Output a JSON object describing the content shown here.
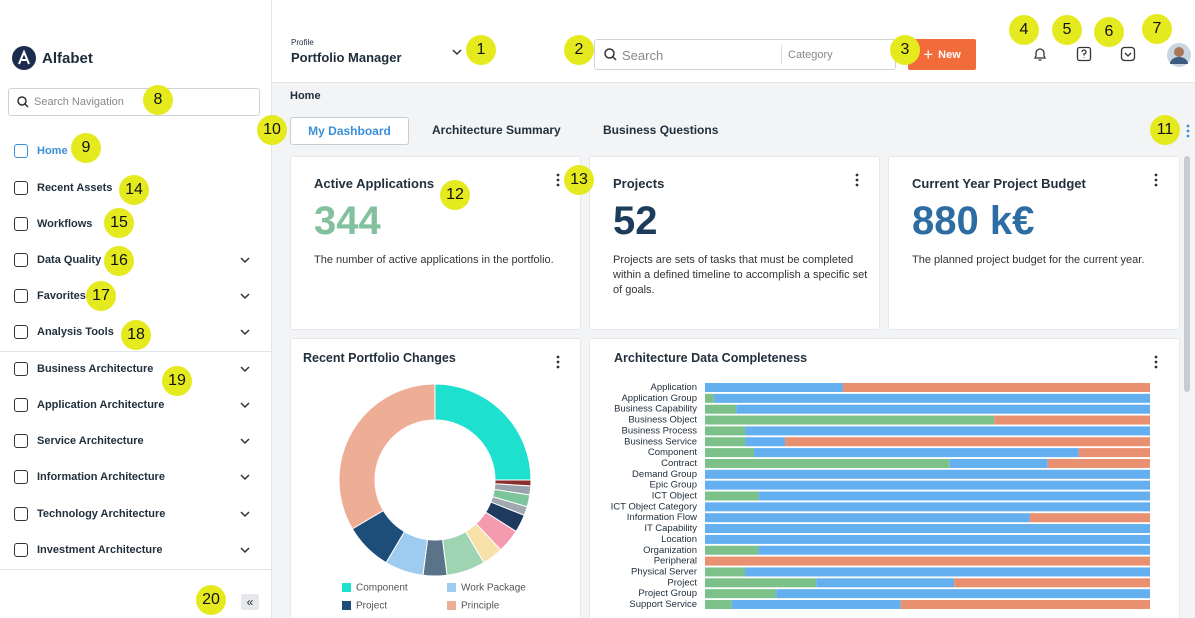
{
  "header": {
    "logo": "Alfabet",
    "profile_label": "Profile",
    "profile": "Portfolio Manager",
    "search_placeholder": "Search",
    "category_placeholder": "Category",
    "new_button": "New"
  },
  "sidebar": {
    "search_placeholder": "Search Navigation",
    "nav": [
      "Home",
      "Recent Assets",
      "Workflows",
      "Data Quality",
      "Favorites",
      "Analysis Tools",
      "Business Architecture",
      "Application Architecture",
      "Service Architecture",
      "Information Architecture",
      "Technology Architecture",
      "Investment Architecture"
    ],
    "collapse": "«"
  },
  "breadcrumb": "Home",
  "tabs": [
    "My Dashboard",
    "Architecture Summary",
    "Business Questions"
  ],
  "cards": [
    {
      "title": "Active Applications",
      "value": 344,
      "description": "The number of active applications in the portfolio."
    },
    {
      "title": "Projects",
      "value": 52,
      "description": "Projects are sets of tasks that must be completed within a defined timeline to accomplish a specific set of goals."
    },
    {
      "title": "Current Year Project Budget",
      "value": "880 k€",
      "description": "The planned project budget for the current year."
    }
  ],
  "callouts": [
    1,
    2,
    3,
    4,
    5,
    6,
    7,
    8,
    9,
    10,
    11,
    12,
    13,
    14,
    15,
    16,
    17,
    18,
    19,
    20
  ],
  "chart_data": [
    {
      "type": "pie",
      "donut": true,
      "title": "Recent Portfolio Changes",
      "categories": [
        "Component",
        null,
        null,
        null,
        null,
        null,
        null,
        null,
        null,
        null,
        "Work Package",
        "Project",
        "Principle"
      ],
      "values": [
        25,
        1,
        1.5,
        2,
        1.5,
        3,
        4,
        3.5,
        6.5,
        4,
        6.5,
        8,
        33.5
      ],
      "colors": [
        "#1de0cf",
        "#8b2e2e",
        "#9aa3ab",
        "#7cc49a",
        "#a0a8b0",
        "#1e3a5f",
        "#f59bb0",
        "#f7e1a8",
        "#9fd4b3",
        "#5a7389",
        "#9ecbf0",
        "#1d4e79",
        "#eeae96"
      ]
    },
    {
      "type": "bar",
      "orientation": "horizontal",
      "stacked": true,
      "title": "Architecture Data Completeness",
      "categories": [
        "Application",
        "Application Group",
        "Business Capability",
        "Business Object",
        "Business Process",
        "Business Service",
        "Component",
        "Contract",
        "Demand Group",
        "Epic Group",
        "ICT Object",
        "ICT Object Category",
        "Information Flow",
        "IT Capability",
        "Location",
        "Organization",
        "Peripheral",
        "Physical Server",
        "Project",
        "Project Group",
        "Support Service"
      ],
      "xlim": [
        0,
        100
      ],
      "series": [
        {
          "color": "#7cc08a",
          "values": [
            0,
            2,
            7,
            65,
            9,
            9,
            11,
            55,
            0,
            0,
            12,
            0,
            0,
            0,
            0,
            12,
            0,
            9,
            25,
            16,
            6
          ]
        },
        {
          "color": "#63aff0",
          "values": [
            31,
            98,
            93,
            0,
            91,
            9,
            73,
            22,
            100,
            100,
            88,
            100,
            73,
            100,
            100,
            88,
            0,
            91,
            31,
            84,
            38
          ]
        },
        {
          "color": "#e8906f",
          "values": [
            69,
            0,
            0,
            35,
            0,
            82,
            16,
            23,
            0,
            0,
            0,
            0,
            27,
            0,
            0,
            0,
            100,
            0,
            44,
            0,
            56
          ]
        }
      ]
    }
  ]
}
